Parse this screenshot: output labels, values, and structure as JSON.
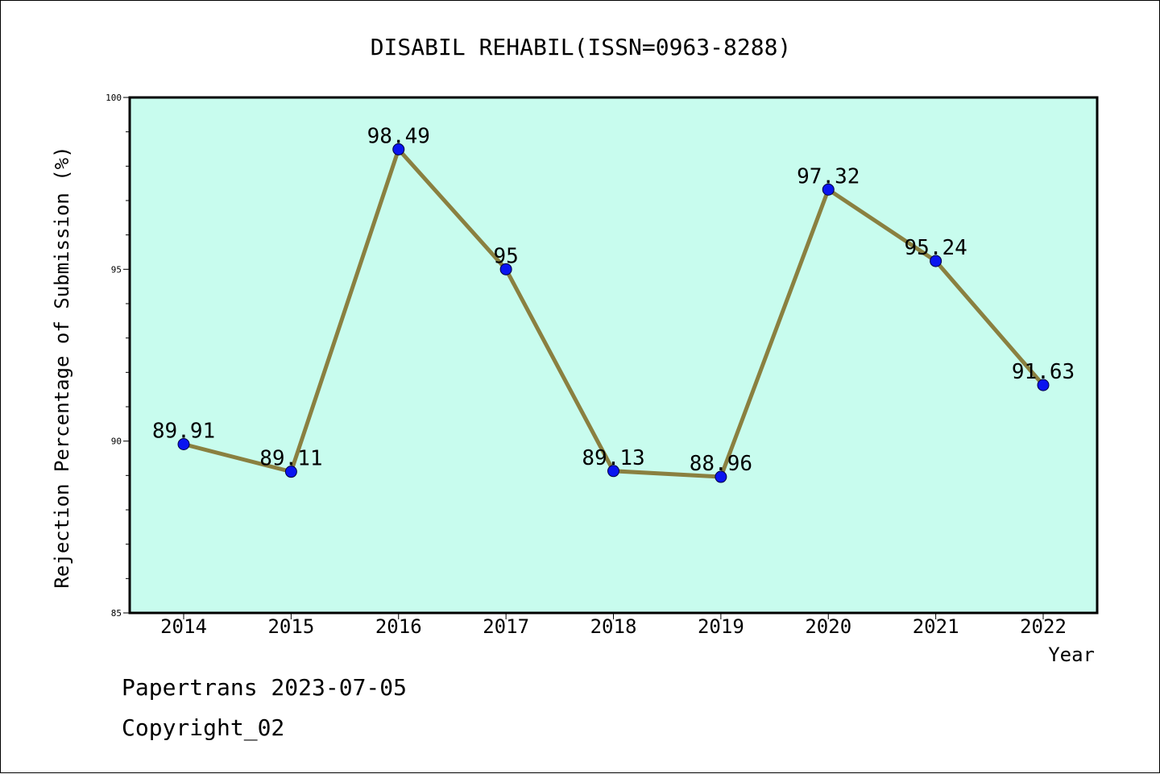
{
  "chart_data": {
    "type": "line",
    "title": "DISABIL REHABIL(ISSN=0963-8288)",
    "xlabel": "Year",
    "ylabel": "Rejection Percentage of Submission (%)",
    "categories": [
      "2014",
      "2015",
      "2016",
      "2017",
      "2018",
      "2019",
      "2020",
      "2021",
      "2022"
    ],
    "values": [
      89.91,
      89.11,
      98.49,
      95,
      89.13,
      88.96,
      97.32,
      95.24,
      91.63
    ],
    "data_labels": [
      "89.91",
      "89.11",
      "98.49",
      "95",
      "89.13",
      "88.96",
      "97.32",
      "95.24",
      "91.63"
    ],
    "ylim": [
      85,
      100
    ],
    "y_ticks": [
      "85",
      "90",
      "95",
      "100"
    ],
    "grid": false,
    "colors": {
      "plot_background": "#c8fcee",
      "line": "#8a8040",
      "marker": "#0a14f0"
    }
  },
  "footer": {
    "line1": "Papertrans 2023-07-05",
    "line2": "Copyright_02"
  }
}
